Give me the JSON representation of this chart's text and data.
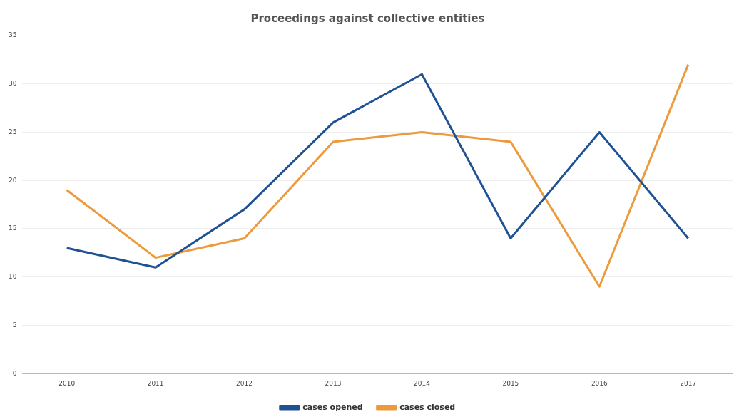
{
  "chart_data": {
    "type": "line",
    "title": "Proceedings against collective entities",
    "categories": [
      "2010",
      "2011",
      "2012",
      "2013",
      "2014",
      "2015",
      "2016",
      "2017"
    ],
    "series": [
      {
        "name": "cases opened",
        "color": "#1f5193",
        "values": [
          13,
          11,
          17,
          26,
          31,
          14,
          25,
          14
        ]
      },
      {
        "name": "cases closed",
        "color": "#ec9a3c",
        "values": [
          19,
          12,
          14,
          24,
          25,
          24,
          9,
          32
        ]
      }
    ],
    "ylim": [
      0,
      35
    ],
    "yticks": [
      0,
      5,
      10,
      15,
      20,
      25,
      30,
      35
    ],
    "grid": "y",
    "legend": "bottom",
    "marker": "none",
    "line_style": "solid"
  }
}
